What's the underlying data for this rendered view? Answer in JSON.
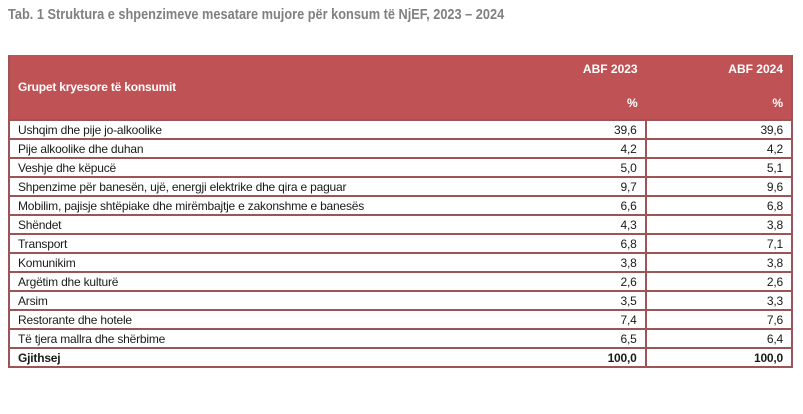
{
  "title": "Tab. 1 Struktura e shpenzimeve mesatare mujore për konsum të NjEF, 2023 – 2024",
  "colors": {
    "header_bg": "#BF5254",
    "header_text": "#FFFFFF",
    "border": "#9D5456",
    "title_text": "#808080",
    "body_text": "#1A1A1A"
  },
  "table": {
    "header": {
      "group_label": "Grupet kryesore të konsumit",
      "columns": [
        {
          "label": "ABF 2023",
          "unit": "%"
        },
        {
          "label": "ABF 2024",
          "unit": "%"
        }
      ]
    },
    "rows": [
      {
        "label": "Ushqim dhe pije jo-alkoolike",
        "abf_2023": "39,6",
        "abf_2024": "39,6"
      },
      {
        "label": "Pije alkoolike dhe duhan",
        "abf_2023": "4,2",
        "abf_2024": "4,2"
      },
      {
        "label": "Veshje dhe këpucë",
        "abf_2023": "5,0",
        "abf_2024": "5,1"
      },
      {
        "label": "Shpenzime për banesën, ujë, energji elektrike dhe qira e paguar",
        "abf_2023": "9,7",
        "abf_2024": "9,6"
      },
      {
        "label": "Mobilim, pajisje shtëpiake dhe mirëmbajtje e zakonshme e banesës",
        "abf_2023": "6,6",
        "abf_2024": "6,8"
      },
      {
        "label": "Shëndet",
        "abf_2023": "4,3",
        "abf_2024": "3,8"
      },
      {
        "label": "Transport",
        "abf_2023": "6,8",
        "abf_2024": "7,1"
      },
      {
        "label": "Komunikim",
        "abf_2023": "3,8",
        "abf_2024": "3,8"
      },
      {
        "label": "Argëtim dhe kulturë",
        "abf_2023": "2,6",
        "abf_2024": "2,6"
      },
      {
        "label": "Arsim",
        "abf_2023": "3,5",
        "abf_2024": "3,3"
      },
      {
        "label": "Restorante dhe hotele",
        "abf_2023": "7,4",
        "abf_2024": "7,6"
      },
      {
        "label": "Të tjera mallra dhe shërbime",
        "abf_2023": "6,5",
        "abf_2024": "6,4"
      },
      {
        "label": "Gjithsej",
        "abf_2023": "100,0",
        "abf_2024": "100,0",
        "bold": true
      }
    ]
  }
}
